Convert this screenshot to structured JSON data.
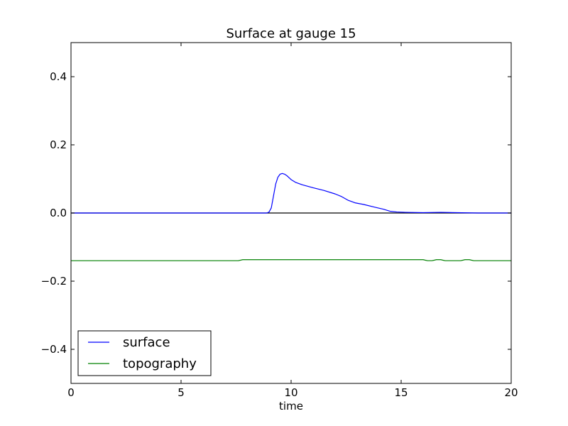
{
  "chart_data": {
    "type": "line",
    "title": "Surface at gauge 15",
    "xlabel": "time",
    "ylabel": "",
    "xlim": [
      0,
      20
    ],
    "ylim": [
      -0.5,
      0.5
    ],
    "grid": false,
    "legend_position": "lower-left",
    "x_ticks": [
      0,
      5,
      10,
      15,
      20
    ],
    "x_tick_labels": [
      "0",
      "5",
      "10",
      "15",
      "20"
    ],
    "y_ticks": [
      -0.4,
      -0.2,
      0.0,
      0.2,
      0.4
    ],
    "y_tick_labels": [
      "−0.4",
      "−0.2",
      "0.0",
      "0.2",
      "0.4"
    ],
    "reference_line": {
      "y": 0.0,
      "color": "#000000"
    },
    "series": [
      {
        "name": "surface",
        "color": "#0000ff",
        "points": [
          [
            0,
            0.0
          ],
          [
            8.9,
            0.0
          ],
          [
            9.0,
            0.003
          ],
          [
            9.1,
            0.015
          ],
          [
            9.2,
            0.05
          ],
          [
            9.3,
            0.085
          ],
          [
            9.4,
            0.105
          ],
          [
            9.5,
            0.114
          ],
          [
            9.6,
            0.116
          ],
          [
            9.7,
            0.114
          ],
          [
            9.8,
            0.11
          ],
          [
            9.9,
            0.104
          ],
          [
            10.0,
            0.098
          ],
          [
            10.2,
            0.09
          ],
          [
            10.5,
            0.083
          ],
          [
            11.0,
            0.074
          ],
          [
            11.5,
            0.066
          ],
          [
            12.0,
            0.056
          ],
          [
            12.3,
            0.048
          ],
          [
            12.6,
            0.037
          ],
          [
            12.9,
            0.03
          ],
          [
            13.3,
            0.025
          ],
          [
            13.8,
            0.017
          ],
          [
            14.2,
            0.011
          ],
          [
            14.5,
            0.005
          ],
          [
            14.8,
            0.003
          ],
          [
            15.2,
            0.002
          ],
          [
            16.0,
            0.001
          ],
          [
            16.8,
            0.002
          ],
          [
            17.5,
            0.001
          ],
          [
            18.0,
            0.0005
          ],
          [
            18.5,
            0.0
          ],
          [
            20.0,
            0.0
          ]
        ]
      },
      {
        "name": "topography",
        "color": "#008000",
        "points": [
          [
            0,
            -0.14
          ],
          [
            7.6,
            -0.14
          ],
          [
            7.8,
            -0.137
          ],
          [
            8.0,
            -0.137
          ],
          [
            16.0,
            -0.137
          ],
          [
            16.2,
            -0.14
          ],
          [
            16.4,
            -0.14
          ],
          [
            16.6,
            -0.137
          ],
          [
            16.8,
            -0.137
          ],
          [
            17.0,
            -0.14
          ],
          [
            17.7,
            -0.14
          ],
          [
            17.9,
            -0.137
          ],
          [
            18.1,
            -0.137
          ],
          [
            18.3,
            -0.14
          ],
          [
            20.0,
            -0.14
          ]
        ]
      }
    ]
  }
}
